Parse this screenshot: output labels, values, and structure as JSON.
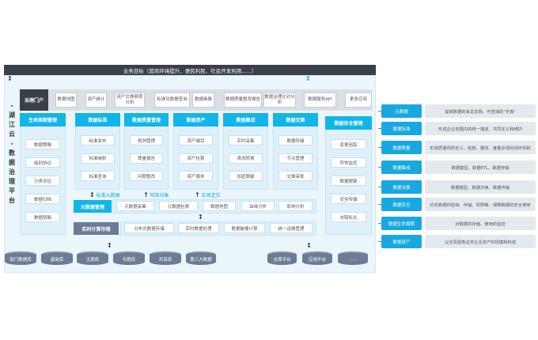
{
  "top_goal": "业务目标（营商环境提升、便民利民、社会开发利用......）",
  "platform_title": "- 湖江云 - 数据治理平台",
  "portal": {
    "head": "治理门户",
    "items": [
      "数据地图",
      "资产统计",
      "资产交换频率分析",
      "标准化数据查询",
      "数据画像",
      "数据质量整改报告",
      "数据治理比对分析",
      "数据服务API",
      "更多应用"
    ]
  },
  "columns": [
    {
      "title": "生命周期管理",
      "items": [
        "数据策略",
        "级别协议",
        "分类评估",
        "数据归档",
        "数据销毁"
      ]
    },
    {
      "title": "数据标准",
      "items": [
        "标准发布",
        "标准映射",
        "标准查询"
      ]
    },
    {
      "title": "数据质量管理",
      "items": [
        "规则管理",
        "质量报告",
        "问题整改"
      ]
    },
    {
      "title": "数据资产",
      "items": [
        "资产编目",
        "资产检索",
        "资产服务"
      ]
    },
    {
      "title": "数据集成",
      "items": [
        "实时采集",
        "清洗转换",
        "加密脱敏"
      ]
    },
    {
      "title": "数据交换",
      "items": [
        "数据传输",
        "节点管理",
        "交换审批"
      ]
    },
    {
      "title": "数据安全管理",
      "items": [
        "变更追踪",
        "异常监控",
        "数据脱敏",
        "安全传输",
        "去隐私化"
      ]
    }
  ],
  "notes": [
    "标准元数据",
    "检核对象",
    "实体定位"
  ],
  "metadata_row": {
    "label": "元数据管理",
    "items": [
      "元数据采集",
      "元数据检索",
      "数据地图",
      "血缘分析",
      "影响分析"
    ]
  },
  "compute_row": {
    "label": "实时计算存储",
    "items": [
      "分布式数据存储",
      "实时数据处理",
      "数据敏捷计算",
      "统一运维管理"
    ]
  },
  "databases": [
    "部门数据库",
    "基础库",
    "主题库",
    "专题库",
    "共享库",
    "第三方数据",
    "支撑平台",
    "应用平台",
    "......"
  ],
  "legend": [
    {
      "label": "元数据",
      "desc": "提高数据的来龙去脉、可查询的\"字典\""
    },
    {
      "label": "数据标准",
      "desc": "形成企业范围内的统一描述、共同定义和维护"
    },
    {
      "label": "数据质量",
      "desc": "形成质量规则定义、检核、整改、度量反馈的闭环机制"
    },
    {
      "label": "数据集成",
      "desc": "数据模型、数据ETL、数据传输"
    },
    {
      "label": "数据交换",
      "desc": "数据模型、数据交换、数据传输"
    },
    {
      "label": "数据安全",
      "desc": "约定数据的密级、传输、权限等，保障数据的安全使用"
    },
    {
      "label": "数据生命周期",
      "desc": "对数据的存储、使用的监控"
    },
    {
      "label": "数据资产",
      "desc": "以全局视角总览企业资产的规模和构成"
    }
  ],
  "colors": {
    "accent": "#12b5e8",
    "dark": "#3a3f4a",
    "db": "#6d7c95"
  }
}
